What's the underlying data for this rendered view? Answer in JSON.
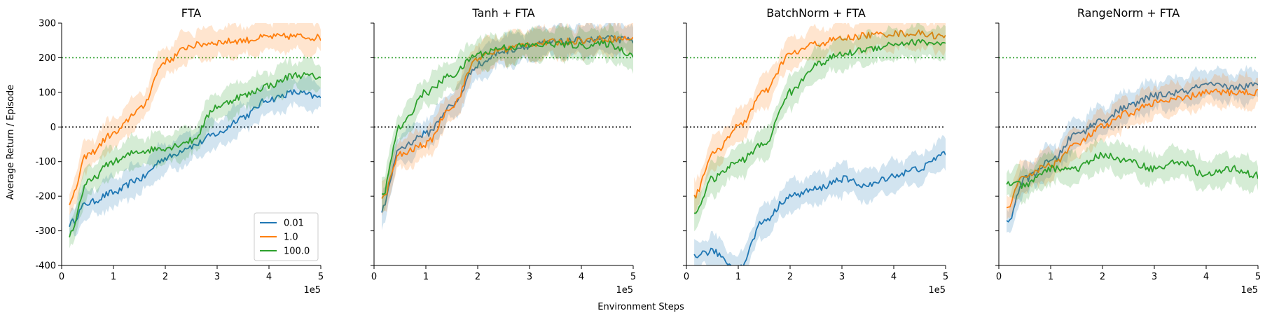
{
  "figure": {
    "xlabel": "Environment Steps",
    "ylabel": "Average Return / Episode",
    "x_offset_label": "1e5"
  },
  "legend": {
    "entries": [
      "0.01",
      "1.0",
      "100.0"
    ]
  },
  "colors": {
    "0.01": "#1f77b4",
    "1.0": "#ff7f0e",
    "100.0": "#2ca02c",
    "threshold_line": "#2ca02c",
    "zero_line": "#000000"
  },
  "chart_data": [
    {
      "type": "line",
      "title": "FTA",
      "xlim": [
        0,
        5
      ],
      "ylim": [
        -400,
        300
      ],
      "xticks": [
        "0",
        "1",
        "2",
        "3",
        "4",
        "5"
      ],
      "yticks": [
        "-400",
        "-300",
        "-200",
        "-100",
        "0",
        "100",
        "200",
        "300"
      ],
      "reference_lines": [
        200,
        0
      ],
      "legend": "bottom-right",
      "series": [
        {
          "name": "0.01",
          "x": [
            0.15,
            0.5,
            1,
            1.5,
            2,
            2.5,
            3,
            3.5,
            4,
            4.5,
            5
          ],
          "y": [
            -280,
            -220,
            -190,
            -150,
            -90,
            -55,
            -20,
            30,
            80,
            100,
            85
          ]
        },
        {
          "name": "1.0",
          "x": [
            0.15,
            0.5,
            1,
            1.5,
            2,
            2.5,
            3,
            3.5,
            4,
            4.5,
            5
          ],
          "y": [
            -220,
            -80,
            -20,
            50,
            190,
            235,
            245,
            250,
            260,
            262,
            258
          ]
        },
        {
          "name": "100.0",
          "x": [
            0.15,
            0.5,
            1,
            1.5,
            2,
            2.5,
            3,
            3.5,
            4,
            4.5,
            5
          ],
          "y": [
            -310,
            -160,
            -100,
            -70,
            -60,
            -40,
            60,
            90,
            120,
            150,
            145
          ]
        }
      ]
    },
    {
      "type": "line",
      "title": "Tanh + FTA",
      "xlim": [
        0,
        5
      ],
      "ylim": [
        -400,
        300
      ],
      "xticks": [
        "0",
        "1",
        "2",
        "3",
        "4",
        "5"
      ],
      "yticks": [],
      "reference_lines": [
        200,
        0
      ],
      "series": [
        {
          "name": "0.01",
          "x": [
            0.15,
            0.5,
            1,
            1.5,
            2,
            2.5,
            3,
            3.5,
            4,
            4.5,
            5
          ],
          "y": [
            -240,
            -60,
            -20,
            60,
            180,
            220,
            235,
            245,
            250,
            255,
            250
          ]
        },
        {
          "name": "1.0",
          "x": [
            0.15,
            0.5,
            1,
            1.5,
            2,
            2.5,
            3,
            3.5,
            4,
            4.5,
            5
          ],
          "y": [
            -210,
            -80,
            -50,
            60,
            200,
            225,
            240,
            245,
            250,
            255,
            255
          ]
        },
        {
          "name": "100.0",
          "x": [
            0.15,
            0.5,
            1,
            1.5,
            2,
            2.5,
            3,
            3.5,
            4,
            4.5,
            5
          ],
          "y": [
            -200,
            0,
            100,
            150,
            210,
            230,
            235,
            240,
            235,
            240,
            210
          ]
        }
      ]
    },
    {
      "type": "line",
      "title": "BatchNorm + FTA",
      "xlim": [
        0,
        5
      ],
      "ylim": [
        -400,
        300
      ],
      "xticks": [
        "0",
        "1",
        "2",
        "3",
        "4",
        "5"
      ],
      "yticks": [],
      "reference_lines": [
        200,
        0
      ],
      "series": [
        {
          "name": "0.01",
          "x": [
            0.15,
            0.5,
            1,
            1.5,
            2,
            2.5,
            3,
            3.5,
            4,
            4.5,
            5
          ],
          "y": [
            -370,
            -360,
            -410,
            -270,
            -200,
            -180,
            -150,
            -170,
            -140,
            -120,
            -75
          ]
        },
        {
          "name": "1.0",
          "x": [
            0.15,
            0.5,
            1,
            1.5,
            2,
            2.5,
            3,
            3.5,
            4,
            4.5,
            5
          ],
          "y": [
            -200,
            -80,
            0,
            100,
            210,
            240,
            255,
            265,
            270,
            270,
            260
          ]
        },
        {
          "name": "100.0",
          "x": [
            0.15,
            0.5,
            1,
            1.5,
            2,
            2.5,
            3,
            3.5,
            4,
            4.5,
            5
          ],
          "y": [
            -250,
            -150,
            -100,
            -50,
            100,
            180,
            210,
            225,
            240,
            245,
            240
          ]
        }
      ]
    },
    {
      "type": "line",
      "title": "RangeNorm + FTA",
      "xlim": [
        0,
        5
      ],
      "ylim": [
        -400,
        300
      ],
      "xticks": [
        "0",
        "1",
        "2",
        "3",
        "4",
        "5"
      ],
      "yticks": [],
      "reference_lines": [
        200,
        0
      ],
      "series": [
        {
          "name": "0.01",
          "x": [
            0.15,
            0.5,
            1,
            1.5,
            2,
            2.5,
            3,
            3.5,
            4,
            4.5,
            5
          ],
          "y": [
            -280,
            -150,
            -100,
            -20,
            20,
            60,
            90,
            100,
            120,
            115,
            120
          ]
        },
        {
          "name": "1.0",
          "x": [
            0.15,
            0.5,
            1,
            1.5,
            2,
            2.5,
            3,
            3.5,
            4,
            4.5,
            5
          ],
          "y": [
            -230,
            -140,
            -110,
            -50,
            0,
            40,
            70,
            80,
            100,
            100,
            100
          ]
        },
        {
          "name": "100.0",
          "x": [
            0.15,
            0.5,
            1,
            1.5,
            2,
            2.5,
            3,
            3.5,
            4,
            4.5,
            5
          ],
          "y": [
            -160,
            -170,
            -120,
            -120,
            -80,
            -100,
            -120,
            -100,
            -140,
            -120,
            -140
          ]
        }
      ]
    }
  ]
}
